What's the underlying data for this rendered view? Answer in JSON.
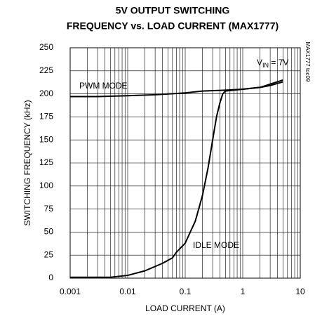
{
  "chart_data": {
    "type": "line",
    "title_lines": [
      "5V OUTPUT SWITCHING",
      "FREQUENCY vs. LOAD CURRENT (MAX1777)"
    ],
    "x_label": "LOAD CURRENT (A)",
    "y_label": "SWITCHING FREQUENCY (kHz)",
    "condition": {
      "main": "V",
      "subscript": "IN",
      "suffix": " = 7V"
    },
    "figure_id": "MAX1777 toc09",
    "xscale": "log",
    "grid": true,
    "xlim": [
      0.001,
      10
    ],
    "xticks": [
      0.001,
      0.01,
      0.1,
      1,
      10
    ],
    "ylim": [
      0,
      250
    ],
    "yticks": [
      0,
      25,
      50,
      75,
      100,
      125,
      150,
      175,
      200,
      225,
      250
    ],
    "series": [
      {
        "name": "PWM MODE",
        "color": "#000000",
        "x": [
          0.001,
          0.003,
          0.01,
          0.03,
          0.1,
          0.2,
          0.5,
          1,
          2,
          3,
          5
        ],
        "values": [
          197,
          197,
          198,
          199,
          201,
          203,
          204,
          205,
          207,
          209,
          213
        ]
      },
      {
        "name": "IDLE MODE",
        "color": "#000000",
        "x": [
          0.001,
          0.005,
          0.01,
          0.02,
          0.04,
          0.06,
          0.07,
          0.1,
          0.15,
          0.2,
          0.25,
          0.3,
          0.35,
          0.4,
          0.45,
          0.5,
          1,
          2,
          5
        ],
        "values": [
          1,
          1,
          3,
          8,
          16,
          22,
          28,
          38,
          62,
          90,
          120,
          150,
          175,
          190,
          200,
          203,
          205,
          207,
          215
        ]
      }
    ]
  }
}
